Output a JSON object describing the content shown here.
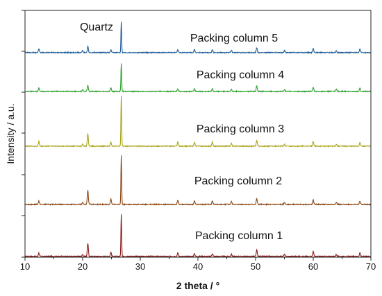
{
  "chart_data": {
    "type": "line",
    "title": "",
    "xlabel": "2 theta / °",
    "ylabel": "Intensity / a.u.",
    "xlim": [
      10,
      70
    ],
    "x_ticks": [
      10,
      20,
      30,
      40,
      50,
      60,
      70
    ],
    "y_ticks_shown": false,
    "grid": false,
    "legend": "none (series labelled inline above each trace)",
    "annotations": [
      {
        "text": "Quartz",
        "x": 26.6,
        "series": "Packing column 5"
      }
    ],
    "series": [
      {
        "name": "Packing column 1",
        "color": "#8B1A1A",
        "baseline": 0,
        "peaks": [
          [
            12.4,
            5
          ],
          [
            20.0,
            3
          ],
          [
            20.9,
            19
          ],
          [
            24.9,
            6
          ],
          [
            26.7,
            60
          ],
          [
            36.5,
            5
          ],
          [
            39.4,
            4
          ],
          [
            42.5,
            4
          ],
          [
            45.8,
            3
          ],
          [
            50.2,
            9
          ],
          [
            55.0,
            3
          ],
          [
            60.0,
            7
          ],
          [
            64.0,
            3
          ],
          [
            68.1,
            5
          ]
        ]
      },
      {
        "name": "Packing column 2",
        "color": "#8B4513",
        "baseline": 1,
        "peaks": [
          [
            12.4,
            5
          ],
          [
            20.0,
            3
          ],
          [
            20.9,
            20
          ],
          [
            24.9,
            8
          ],
          [
            26.7,
            70
          ],
          [
            36.5,
            6
          ],
          [
            39.4,
            5
          ],
          [
            42.5,
            5
          ],
          [
            45.8,
            4
          ],
          [
            50.2,
            8
          ],
          [
            55.0,
            3
          ],
          [
            60.0,
            7
          ],
          [
            64.0,
            3
          ],
          [
            68.1,
            5
          ]
        ]
      },
      {
        "name": "Packing column 3",
        "color": "#A8A418",
        "baseline": 2,
        "peaks": [
          [
            12.4,
            7
          ],
          [
            20.0,
            3
          ],
          [
            20.9,
            18
          ],
          [
            24.9,
            6
          ],
          [
            26.7,
            72
          ],
          [
            36.5,
            6
          ],
          [
            39.4,
            6
          ],
          [
            42.5,
            6
          ],
          [
            45.8,
            4
          ],
          [
            50.2,
            8
          ],
          [
            55.0,
            3
          ],
          [
            60.0,
            7
          ],
          [
            64.0,
            3
          ],
          [
            68.1,
            5
          ]
        ]
      },
      {
        "name": "Packing column 4",
        "color": "#2EA12E",
        "baseline": 3,
        "peaks": [
          [
            12.4,
            5
          ],
          [
            20.0,
            3
          ],
          [
            20.9,
            9
          ],
          [
            24.9,
            5
          ],
          [
            26.7,
            41
          ],
          [
            36.5,
            4
          ],
          [
            39.4,
            4
          ],
          [
            42.5,
            4
          ],
          [
            45.8,
            3
          ],
          [
            50.2,
            8
          ],
          [
            55.0,
            3
          ],
          [
            60.0,
            6
          ],
          [
            64.0,
            3
          ],
          [
            68.1,
            5
          ]
        ]
      },
      {
        "name": "Packing column 5",
        "color": "#1F5E99",
        "baseline": 4,
        "peaks": [
          [
            12.4,
            5
          ],
          [
            20.0,
            3
          ],
          [
            20.9,
            9
          ],
          [
            24.9,
            4
          ],
          [
            26.7,
            45
          ],
          [
            36.5,
            4
          ],
          [
            39.4,
            4
          ],
          [
            42.5,
            4
          ],
          [
            45.8,
            3
          ],
          [
            50.2,
            7
          ],
          [
            55.0,
            3
          ],
          [
            60.0,
            6
          ],
          [
            64.0,
            3
          ],
          [
            68.1,
            5
          ]
        ]
      }
    ]
  }
}
